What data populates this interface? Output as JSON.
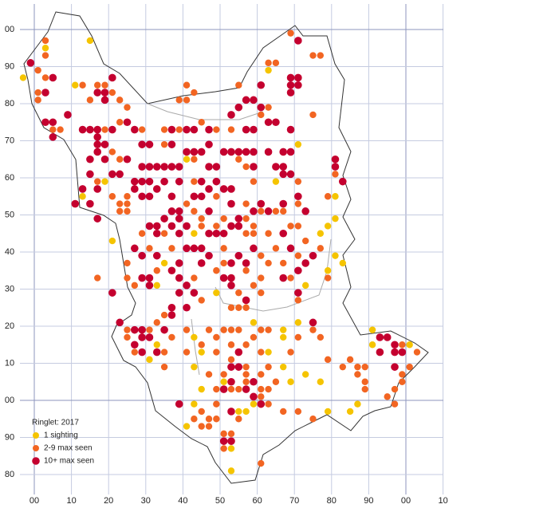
{
  "x_labels": [
    "00",
    "10",
    "20",
    "30",
    "40",
    "50",
    "60",
    "70",
    "80",
    "90",
    "00",
    "10"
  ],
  "y_labels": [
    "00",
    "90",
    "80",
    "70",
    "60",
    "50",
    "40",
    "30",
    "20",
    "10",
    "00",
    "90",
    "80"
  ],
  "legend": {
    "title": "Ringlet:  2017",
    "items": [
      {
        "label": "1 sighting",
        "color": "#f5c400"
      },
      {
        "label": "2-9 max seen",
        "color": "#f26522"
      },
      {
        "label": "10+ max seen",
        "color": "#c4002f"
      }
    ]
  },
  "dots": [
    [
      3,
      97,
      1
    ],
    [
      3,
      95,
      0
    ],
    [
      3,
      93,
      1
    ],
    [
      15,
      97,
      0
    ],
    [
      69,
      99,
      1
    ],
    [
      71,
      97,
      2
    ],
    [
      -1,
      91,
      2
    ],
    [
      -3,
      87,
      0
    ],
    [
      1,
      89,
      1
    ],
    [
      3,
      87,
      1
    ],
    [
      5,
      87,
      2
    ],
    [
      1,
      83,
      1
    ],
    [
      3,
      83,
      2
    ],
    [
      1,
      81,
      1
    ],
    [
      11,
      85,
      0
    ],
    [
      13,
      85,
      1
    ],
    [
      17,
      85,
      1
    ],
    [
      19,
      85,
      1
    ],
    [
      21,
      87,
      2
    ],
    [
      17,
      83,
      2
    ],
    [
      19,
      83,
      2
    ],
    [
      21,
      83,
      1
    ],
    [
      15,
      81,
      1
    ],
    [
      19,
      81,
      2
    ],
    [
      23,
      81,
      1
    ],
    [
      25,
      79,
      1
    ],
    [
      41,
      85,
      1
    ],
    [
      43,
      83,
      1
    ],
    [
      55,
      85,
      1
    ],
    [
      61,
      85,
      2
    ],
    [
      63,
      89,
      0
    ],
    [
      65,
      91,
      1
    ],
    [
      63,
      91,
      1
    ],
    [
      69,
      87,
      2
    ],
    [
      71,
      87,
      2
    ],
    [
      69,
      85,
      2
    ],
    [
      71,
      85,
      2
    ],
    [
      69,
      83,
      2
    ],
    [
      75,
      93,
      1
    ],
    [
      77,
      93,
      1
    ],
    [
      39,
      81,
      1
    ],
    [
      41,
      81,
      1
    ],
    [
      57,
      81,
      2
    ],
    [
      59,
      81,
      2
    ],
    [
      61,
      79,
      2
    ],
    [
      55,
      79,
      2
    ],
    [
      53,
      77,
      2
    ],
    [
      63,
      79,
      1
    ],
    [
      61,
      77,
      1
    ],
    [
      3,
      75,
      2
    ],
    [
      5,
      75,
      2
    ],
    [
      9,
      77,
      2
    ],
    [
      5,
      73,
      1
    ],
    [
      7,
      73,
      1
    ],
    [
      5,
      71,
      2
    ],
    [
      13,
      73,
      2
    ],
    [
      15,
      73,
      2
    ],
    [
      17,
      73,
      2
    ],
    [
      19,
      73,
      1
    ],
    [
      21,
      73,
      2
    ],
    [
      23,
      75,
      1
    ],
    [
      25,
      75,
      2
    ],
    [
      27,
      73,
      2
    ],
    [
      29,
      73,
      1
    ],
    [
      17,
      71,
      2
    ],
    [
      17,
      69,
      2
    ],
    [
      19,
      69,
      2
    ],
    [
      17,
      67,
      2
    ],
    [
      21,
      67,
      1
    ],
    [
      35,
      73,
      1
    ],
    [
      37,
      73,
      2
    ],
    [
      39,
      73,
      1
    ],
    [
      41,
      73,
      2
    ],
    [
      43,
      73,
      2
    ],
    [
      45,
      75,
      1
    ],
    [
      47,
      73,
      2
    ],
    [
      49,
      73,
      1
    ],
    [
      53,
      73,
      1
    ],
    [
      57,
      73,
      2
    ],
    [
      59,
      73,
      2
    ],
    [
      63,
      75,
      2
    ],
    [
      65,
      75,
      2
    ],
    [
      69,
      73,
      2
    ],
    [
      75,
      77,
      1
    ],
    [
      71,
      69,
      0
    ],
    [
      29,
      69,
      2
    ],
    [
      31,
      69,
      2
    ],
    [
      35,
      69,
      1
    ],
    [
      37,
      69,
      2
    ],
    [
      41,
      67,
      2
    ],
    [
      43,
      67,
      2
    ],
    [
      45,
      67,
      2
    ],
    [
      47,
      69,
      2
    ],
    [
      51,
      67,
      2
    ],
    [
      53,
      67,
      2
    ],
    [
      55,
      67,
      2
    ],
    [
      57,
      67,
      2
    ],
    [
      59,
      67,
      2
    ],
    [
      63,
      67,
      2
    ],
    [
      67,
      67,
      2
    ],
    [
      69,
      67,
      2
    ],
    [
      15,
      65,
      2
    ],
    [
      19,
      65,
      2
    ],
    [
      23,
      65,
      1
    ],
    [
      25,
      65,
      2
    ],
    [
      29,
      63,
      2
    ],
    [
      31,
      63,
      2
    ],
    [
      33,
      63,
      2
    ],
    [
      35,
      63,
      2
    ],
    [
      37,
      63,
      2
    ],
    [
      39,
      63,
      2
    ],
    [
      41,
      65,
      0
    ],
    [
      43,
      65,
      1
    ],
    [
      47,
      63,
      2
    ],
    [
      49,
      63,
      2
    ],
    [
      55,
      65,
      1
    ],
    [
      57,
      63,
      1
    ],
    [
      59,
      63,
      2
    ],
    [
      65,
      63,
      2
    ],
    [
      67,
      63,
      2
    ],
    [
      81,
      65,
      2
    ],
    [
      81,
      63,
      2
    ],
    [
      81,
      61,
      1
    ],
    [
      83,
      59,
      2
    ],
    [
      15,
      61,
      2
    ],
    [
      17,
      59,
      1
    ],
    [
      19,
      59,
      0
    ],
    [
      21,
      61,
      2
    ],
    [
      23,
      61,
      2
    ],
    [
      27,
      59,
      2
    ],
    [
      29,
      59,
      2
    ],
    [
      31,
      59,
      2
    ],
    [
      33,
      57,
      2
    ],
    [
      35,
      59,
      2
    ],
    [
      39,
      59,
      2
    ],
    [
      43,
      59,
      1
    ],
    [
      45,
      59,
      2
    ],
    [
      49,
      59,
      2
    ],
    [
      51,
      57,
      2
    ],
    [
      53,
      57,
      2
    ],
    [
      59,
      59,
      1
    ],
    [
      67,
      61,
      2
    ],
    [
      69,
      61,
      2
    ],
    [
      65,
      59,
      0
    ],
    [
      71,
      59,
      1
    ],
    [
      13,
      57,
      2
    ],
    [
      17,
      57,
      2
    ],
    [
      21,
      55,
      1
    ],
    [
      25,
      55,
      1
    ],
    [
      27,
      57,
      2
    ],
    [
      29,
      55,
      2
    ],
    [
      31,
      55,
      2
    ],
    [
      37,
      55,
      2
    ],
    [
      41,
      53,
      1
    ],
    [
      43,
      55,
      2
    ],
    [
      45,
      55,
      2
    ],
    [
      47,
      57,
      2
    ],
    [
      49,
      55,
      1
    ],
    [
      53,
      53,
      2
    ],
    [
      57,
      53,
      1
    ],
    [
      59,
      51,
      2
    ],
    [
      61,
      53,
      2
    ],
    [
      63,
      51,
      2
    ],
    [
      65,
      51,
      1
    ],
    [
      67,
      51,
      1
    ],
    [
      71,
      55,
      2
    ],
    [
      71,
      53,
      1
    ],
    [
      11,
      53,
      2
    ],
    [
      13,
      55,
      0
    ],
    [
      15,
      53,
      2
    ],
    [
      23,
      53,
      1
    ],
    [
      25,
      53,
      1
    ],
    [
      23,
      51,
      1
    ],
    [
      25,
      51,
      1
    ],
    [
      35,
      49,
      2
    ],
    [
      37,
      51,
      2
    ],
    [
      39,
      51,
      2
    ],
    [
      43,
      51,
      1
    ],
    [
      45,
      49,
      1
    ],
    [
      47,
      51,
      2
    ],
    [
      51,
      49,
      1
    ],
    [
      55,
      49,
      2
    ],
    [
      57,
      49,
      1
    ],
    [
      61,
      51,
      1
    ],
    [
      67,
      53,
      2
    ],
    [
      73,
      51,
      2
    ],
    [
      79,
      55,
      1
    ],
    [
      81,
      55,
      0
    ],
    [
      17,
      49,
      2
    ],
    [
      81,
      49,
      0
    ],
    [
      79,
      47,
      0
    ],
    [
      77,
      45,
      0
    ],
    [
      69,
      47,
      1
    ],
    [
      71,
      47,
      1
    ],
    [
      31,
      47,
      2
    ],
    [
      33,
      47,
      2
    ],
    [
      37,
      47,
      2
    ],
    [
      39,
      49,
      2
    ],
    [
      41,
      47,
      2
    ],
    [
      45,
      47,
      1
    ],
    [
      49,
      47,
      1
    ],
    [
      53,
      47,
      2
    ],
    [
      55,
      47,
      2
    ],
    [
      59,
      47,
      1
    ],
    [
      21,
      43,
      0
    ],
    [
      29,
      45,
      1
    ],
    [
      33,
      45,
      2
    ],
    [
      35,
      45,
      1
    ],
    [
      39,
      45,
      2
    ],
    [
      43,
      45,
      0
    ],
    [
      47,
      45,
      2
    ],
    [
      49,
      45,
      2
    ],
    [
      51,
      45,
      2
    ],
    [
      57,
      45,
      1
    ],
    [
      59,
      45,
      1
    ],
    [
      63,
      45,
      1
    ],
    [
      67,
      45,
      2
    ],
    [
      73,
      43,
      1
    ],
    [
      77,
      41,
      1
    ],
    [
      27,
      41,
      2
    ],
    [
      31,
      41,
      1
    ],
    [
      37,
      41,
      1
    ],
    [
      41,
      41,
      2
    ],
    [
      43,
      41,
      2
    ],
    [
      45,
      41,
      2
    ],
    [
      51,
      41,
      1
    ],
    [
      55,
      39,
      2
    ],
    [
      59,
      41,
      2
    ],
    [
      61,
      39,
      1
    ],
    [
      65,
      41,
      1
    ],
    [
      69,
      41,
      2
    ],
    [
      71,
      39,
      1
    ],
    [
      73,
      37,
      2
    ],
    [
      75,
      39,
      2
    ],
    [
      81,
      39,
      0
    ],
    [
      83,
      37,
      0
    ],
    [
      25,
      37,
      1
    ],
    [
      29,
      39,
      2
    ],
    [
      33,
      39,
      2
    ],
    [
      35,
      37,
      0
    ],
    [
      39,
      37,
      2
    ],
    [
      45,
      37,
      2
    ],
    [
      47,
      39,
      2
    ],
    [
      51,
      37,
      1
    ],
    [
      53,
      37,
      2
    ],
    [
      57,
      37,
      2
    ],
    [
      63,
      37,
      1
    ],
    [
      67,
      37,
      1
    ],
    [
      71,
      35,
      2
    ],
    [
      79,
      35,
      0
    ],
    [
      25,
      33,
      1
    ],
    [
      27,
      31,
      1
    ],
    [
      29,
      33,
      2
    ],
    [
      31,
      33,
      2
    ],
    [
      33,
      35,
      1
    ],
    [
      37,
      35,
      2
    ],
    [
      39,
      33,
      2
    ],
    [
      41,
      31,
      2
    ],
    [
      43,
      33,
      1
    ],
    [
      49,
      35,
      1
    ],
    [
      51,
      33,
      2
    ],
    [
      53,
      33,
      2
    ],
    [
      57,
      35,
      1
    ],
    [
      61,
      33,
      1
    ],
    [
      67,
      33,
      2
    ],
    [
      69,
      33,
      1
    ],
    [
      73,
      31,
      0
    ],
    [
      79,
      33,
      1
    ],
    [
      17,
      33,
      1
    ],
    [
      21,
      29,
      2
    ],
    [
      31,
      31,
      2
    ],
    [
      33,
      31,
      0
    ],
    [
      39,
      29,
      2
    ],
    [
      43,
      29,
      2
    ],
    [
      45,
      27,
      1
    ],
    [
      49,
      29,
      0
    ],
    [
      53,
      31,
      2
    ],
    [
      55,
      29,
      1
    ],
    [
      57,
      27,
      2
    ],
    [
      59,
      31,
      1
    ],
    [
      61,
      29,
      1
    ],
    [
      71,
      29,
      2
    ],
    [
      37,
      25,
      2
    ],
    [
      41,
      25,
      2
    ],
    [
      53,
      25,
      1
    ],
    [
      55,
      25,
      1
    ],
    [
      57,
      25,
      1
    ],
    [
      71,
      27,
      1
    ],
    [
      37,
      23,
      2
    ],
    [
      35,
      23,
      1
    ],
    [
      23,
      21,
      2
    ],
    [
      25,
      19,
      1
    ],
    [
      27,
      19,
      2
    ],
    [
      29,
      19,
      2
    ],
    [
      31,
      19,
      1
    ],
    [
      33,
      21,
      1
    ],
    [
      35,
      19,
      2
    ],
    [
      41,
      19,
      1
    ],
    [
      47,
      19,
      1
    ],
    [
      51,
      19,
      1
    ],
    [
      53,
      19,
      1
    ],
    [
      55,
      19,
      1
    ],
    [
      59,
      21,
      0
    ],
    [
      61,
      19,
      1
    ],
    [
      63,
      19,
      1
    ],
    [
      67,
      19,
      0
    ],
    [
      71,
      21,
      0
    ],
    [
      75,
      21,
      2
    ],
    [
      75,
      19,
      1
    ],
    [
      25,
      17,
      1
    ],
    [
      27,
      15,
      2
    ],
    [
      29,
      17,
      2
    ],
    [
      31,
      17,
      2
    ],
    [
      33,
      15,
      0
    ],
    [
      37,
      17,
      1
    ],
    [
      43,
      17,
      0
    ],
    [
      45,
      15,
      1
    ],
    [
      49,
      17,
      1
    ],
    [
      53,
      15,
      1
    ],
    [
      57,
      15,
      1
    ],
    [
      59,
      17,
      1
    ],
    [
      67,
      17,
      0
    ],
    [
      71,
      17,
      1
    ],
    [
      77,
      17,
      1
    ],
    [
      91,
      19,
      0
    ],
    [
      93,
      17,
      2
    ],
    [
      95,
      17,
      2
    ],
    [
      97,
      15,
      2
    ],
    [
      99,
      15,
      1
    ],
    [
      101,
      15,
      0
    ],
    [
      27,
      13,
      1
    ],
    [
      29,
      13,
      2
    ],
    [
      31,
      11,
      0
    ],
    [
      33,
      13,
      2
    ],
    [
      35,
      13,
      1
    ],
    [
      41,
      13,
      1
    ],
    [
      45,
      13,
      0
    ],
    [
      49,
      13,
      1
    ],
    [
      53,
      11,
      1
    ],
    [
      55,
      13,
      2
    ],
    [
      61,
      13,
      1
    ],
    [
      63,
      13,
      0
    ],
    [
      69,
      13,
      1
    ],
    [
      79,
      11,
      1
    ],
    [
      85,
      11,
      1
    ],
    [
      91,
      15,
      0
    ],
    [
      93,
      13,
      2
    ],
    [
      97,
      13,
      2
    ],
    [
      99,
      13,
      2
    ],
    [
      103,
      13,
      1
    ],
    [
      35,
      9,
      1
    ],
    [
      43,
      9,
      0
    ],
    [
      53,
      9,
      2
    ],
    [
      55,
      9,
      2
    ],
    [
      57,
      9,
      1
    ],
    [
      63,
      9,
      1
    ],
    [
      67,
      9,
      0
    ],
    [
      83,
      9,
      1
    ],
    [
      87,
      9,
      1
    ],
    [
      89,
      9,
      1
    ],
    [
      97,
      9,
      2
    ],
    [
      101,
      9,
      1
    ],
    [
      47,
      7,
      1
    ],
    [
      51,
      7,
      1
    ],
    [
      57,
      7,
      1
    ],
    [
      61,
      7,
      1
    ],
    [
      73,
      7,
      0
    ],
    [
      87,
      7,
      1
    ],
    [
      99,
      7,
      1
    ],
    [
      51,
      5,
      0
    ],
    [
      53,
      5,
      2
    ],
    [
      57,
      5,
      1
    ],
    [
      59,
      5,
      2
    ],
    [
      65,
      5,
      1
    ],
    [
      69,
      5,
      0
    ],
    [
      77,
      5,
      0
    ],
    [
      89,
      5,
      1
    ],
    [
      45,
      3,
      0
    ],
    [
      49,
      3,
      1
    ],
    [
      51,
      3,
      2
    ],
    [
      53,
      3,
      1
    ],
    [
      55,
      3,
      1
    ],
    [
      57,
      3,
      2
    ],
    [
      61,
      3,
      1
    ],
    [
      63,
      3,
      1
    ],
    [
      89,
      3,
      1
    ],
    [
      97,
      3,
      1
    ],
    [
      99,
      5,
      1
    ],
    [
      59,
      1,
      2
    ],
    [
      61,
      1,
      1
    ],
    [
      95,
      1,
      1
    ],
    [
      39,
      -1,
      2
    ],
    [
      43,
      -1,
      0
    ],
    [
      49,
      -1,
      1
    ],
    [
      55,
      -3,
      0
    ],
    [
      57,
      -3,
      0
    ],
    [
      59,
      -1,
      0
    ],
    [
      61,
      -1,
      2
    ],
    [
      63,
      -1,
      1
    ],
    [
      67,
      -3,
      1
    ],
    [
      71,
      -3,
      1
    ],
    [
      75,
      -5,
      1
    ],
    [
      79,
      -3,
      0
    ],
    [
      85,
      -3,
      0
    ],
    [
      87,
      -1,
      0
    ],
    [
      97,
      -1,
      1
    ],
    [
      43,
      -5,
      1
    ],
    [
      45,
      -3,
      1
    ],
    [
      47,
      -5,
      1
    ],
    [
      49,
      -5,
      1
    ],
    [
      53,
      -3,
      2
    ],
    [
      55,
      -5,
      1
    ],
    [
      41,
      -7,
      0
    ],
    [
      45,
      -7,
      1
    ],
    [
      47,
      -7,
      1
    ],
    [
      51,
      -9,
      1
    ],
    [
      53,
      -9,
      1
    ],
    [
      53,
      -11,
      2
    ],
    [
      51,
      -11,
      2
    ],
    [
      53,
      -13,
      0
    ],
    [
      51,
      -13,
      1
    ],
    [
      61,
      -17,
      1
    ],
    [
      53,
      -19,
      0
    ]
  ]
}
